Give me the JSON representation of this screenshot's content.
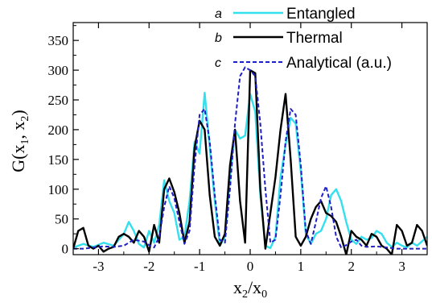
{
  "chart_data": {
    "type": "line",
    "xlabel_main": "x",
    "xlabel_sub1": "2",
    "xlabel_mid": "/x",
    "xlabel_sub2": "0",
    "ylabel_main": "G(x",
    "ylabel_sub1": "1",
    "ylabel_mid": ", x",
    "ylabel_sub2": "2",
    "ylabel_end": ")",
    "xlim": [
      -3.5,
      3.5
    ],
    "ylim": [
      -10,
      380
    ],
    "x_ticks": [
      -3,
      -2,
      -1,
      0,
      1,
      2,
      3
    ],
    "x_tick_labels": [
      "-3",
      "-2",
      "-1",
      "0",
      "1",
      "2",
      "3"
    ],
    "y_ticks": [
      0,
      50,
      100,
      150,
      200,
      250,
      300,
      350
    ],
    "y_tick_labels": [
      "0",
      "50",
      "100",
      "150",
      "200",
      "250",
      "300",
      "350"
    ],
    "grid": false,
    "legend_position": "top-right",
    "series": [
      {
        "name": "Entangled",
        "letter": "a",
        "color": "#33e0ee",
        "style": "solid",
        "x": [
          -3.5,
          -3.3,
          -3.1,
          -2.9,
          -2.7,
          -2.5,
          -2.4,
          -2.3,
          -2.2,
          -2.1,
          -2.0,
          -1.9,
          -1.8,
          -1.7,
          -1.6,
          -1.5,
          -1.4,
          -1.3,
          -1.2,
          -1.1,
          -1.0,
          -0.9,
          -0.8,
          -0.7,
          -0.6,
          -0.5,
          -0.4,
          -0.3,
          -0.2,
          -0.1,
          0.0,
          0.1,
          0.2,
          0.3,
          0.4,
          0.5,
          0.6,
          0.7,
          0.8,
          0.9,
          1.0,
          1.1,
          1.2,
          1.3,
          1.4,
          1.5,
          1.6,
          1.7,
          1.8,
          1.9,
          2.0,
          2.1,
          2.2,
          2.3,
          2.4,
          2.5,
          2.6,
          2.7,
          2.8,
          2.9,
          3.0,
          3.1,
          3.2,
          3.3,
          3.5
        ],
        "values": [
          2,
          8,
          3,
          10,
          5,
          25,
          45,
          30,
          8,
          2,
          30,
          10,
          40,
          115,
          80,
          60,
          15,
          20,
          80,
          180,
          160,
          262,
          170,
          80,
          5,
          20,
          120,
          200,
          185,
          190,
          260,
          230,
          90,
          5,
          1,
          20,
          120,
          175,
          220,
          210,
          130,
          25,
          8,
          25,
          30,
          50,
          90,
          100,
          80,
          45,
          15,
          8,
          20,
          15,
          18,
          30,
          25,
          10,
          3,
          10,
          5,
          2,
          10,
          5,
          20
        ]
      },
      {
        "name": "Thermal",
        "letter": "b",
        "color": "#000000",
        "style": "solid",
        "x": [
          -3.5,
          -3.4,
          -3.3,
          -3.2,
          -3.1,
          -3.0,
          -2.9,
          -2.8,
          -2.7,
          -2.6,
          -2.5,
          -2.4,
          -2.3,
          -2.2,
          -2.1,
          -2.0,
          -1.9,
          -1.8,
          -1.7,
          -1.6,
          -1.5,
          -1.4,
          -1.3,
          -1.2,
          -1.1,
          -1.0,
          -0.9,
          -0.8,
          -0.7,
          -0.6,
          -0.5,
          -0.4,
          -0.3,
          -0.2,
          -0.1,
          0.0,
          0.1,
          0.2,
          0.3,
          0.4,
          0.5,
          0.6,
          0.7,
          0.8,
          0.9,
          1.0,
          1.1,
          1.2,
          1.3,
          1.4,
          1.5,
          1.6,
          1.7,
          1.8,
          1.9,
          2.0,
          2.1,
          2.2,
          2.3,
          2.4,
          2.5,
          2.6,
          2.7,
          2.8,
          2.9,
          3.0,
          3.1,
          3.2,
          3.3,
          3.4,
          3.5
        ],
        "values": [
          0,
          30,
          35,
          5,
          0,
          5,
          -5,
          0,
          3,
          20,
          25,
          20,
          10,
          30,
          20,
          -5,
          40,
          10,
          100,
          118,
          95,
          60,
          10,
          45,
          170,
          215,
          200,
          90,
          20,
          5,
          25,
          140,
          200,
          80,
          10,
          300,
          295,
          100,
          0,
          60,
          120,
          200,
          260,
          150,
          20,
          5,
          20,
          50,
          70,
          80,
          60,
          55,
          45,
          20,
          -10,
          30,
          20,
          15,
          5,
          25,
          20,
          5,
          0,
          -10,
          40,
          30,
          5,
          10,
          40,
          30,
          5
        ]
      },
      {
        "name": "Analytical (a.u.)",
        "letter": "c",
        "color": "#1f1fc8",
        "style": "dashed",
        "x": [
          -3.5,
          -3.3,
          -3.1,
          -2.9,
          -2.7,
          -2.5,
          -2.3,
          -2.1,
          -2.0,
          -1.9,
          -1.8,
          -1.7,
          -1.6,
          -1.5,
          -1.4,
          -1.3,
          -1.2,
          -1.1,
          -1.0,
          -0.9,
          -0.8,
          -0.7,
          -0.6,
          -0.5,
          -0.4,
          -0.3,
          -0.2,
          -0.1,
          0.0,
          0.1,
          0.2,
          0.3,
          0.4,
          0.5,
          0.6,
          0.7,
          0.8,
          0.9,
          1.0,
          1.1,
          1.2,
          1.3,
          1.4,
          1.5,
          1.6,
          1.7,
          1.8,
          1.9,
          2.0,
          2.1,
          2.2,
          2.3,
          2.5,
          2.7,
          2.9,
          3.1,
          3.3,
          3.5
        ],
        "values": [
          0,
          0,
          2,
          4,
          3,
          5,
          15,
          12,
          6,
          2,
          20,
          70,
          105,
          85,
          45,
          8,
          30,
          140,
          225,
          235,
          180,
          90,
          15,
          10,
          100,
          210,
          290,
          305,
          300,
          290,
          210,
          100,
          10,
          15,
          90,
          180,
          235,
          225,
          140,
          30,
          8,
          45,
          85,
          105,
          70,
          20,
          2,
          6,
          12,
          15,
          5,
          3,
          4,
          2,
          0,
          0,
          0,
          0
        ]
      }
    ]
  }
}
